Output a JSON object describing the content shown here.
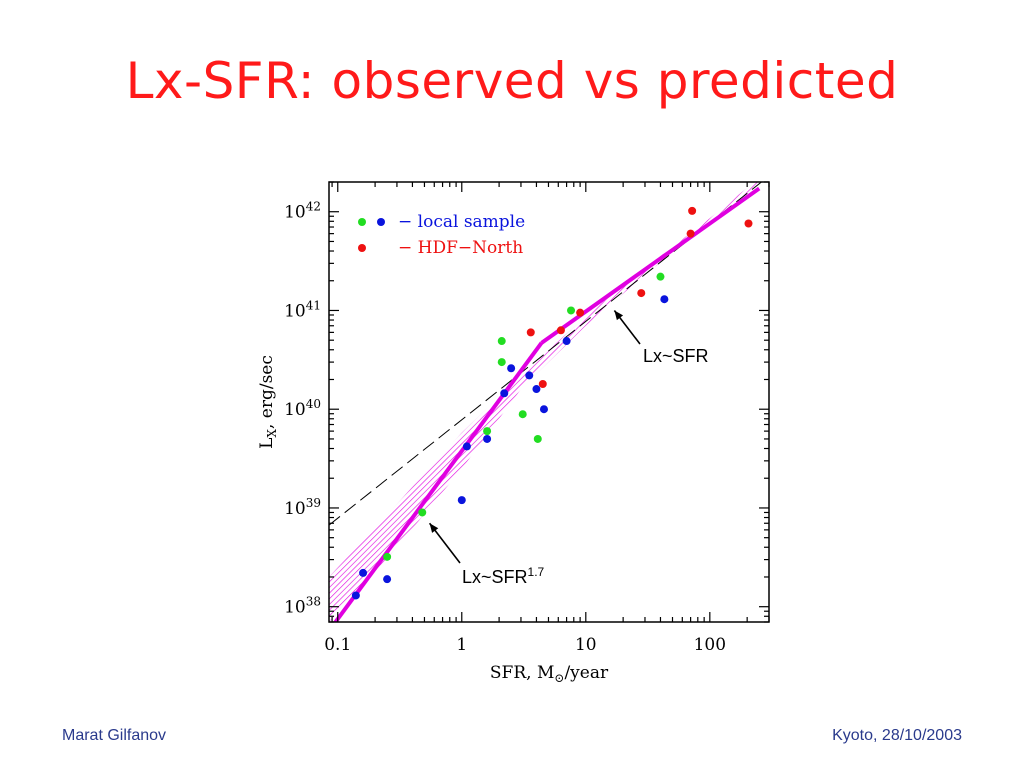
{
  "title": "Lx-SFR: observed vs predicted",
  "footer": {
    "left": "Marat Gilfanov",
    "right": "Kyoto, 28/10/2003"
  },
  "colors": {
    "title": "#ff1a1a",
    "footer": "#2a3a8c",
    "band": "#e000e0",
    "green": "#22dd22",
    "blue": "#0a14dd",
    "red": "#ee1111"
  },
  "chart_data": {
    "type": "scatter",
    "x_scale": "log",
    "y_scale": "log",
    "xlim": [
      0.085,
      300
    ],
    "ylim": [
      7e+37,
      2e+42
    ],
    "grid": false,
    "legend_placement": "top-left",
    "xlabel": {
      "main": "SFR,  M",
      "subscript": "⊙",
      "tail": "/year"
    },
    "ylabel": {
      "main": "L",
      "subscript": "X",
      "tail": ",  erg/sec"
    },
    "x_ticks": [
      {
        "value": 0.1,
        "label": "0.1"
      },
      {
        "value": 1,
        "label": "1"
      },
      {
        "value": 10,
        "label": "10"
      },
      {
        "value": 100,
        "label": "100"
      }
    ],
    "y_ticks": [
      {
        "value": 1e+38,
        "base": "10",
        "exp": "38"
      },
      {
        "value": 1e+39,
        "base": "10",
        "exp": "39"
      },
      {
        "value": 1e+40,
        "base": "10",
        "exp": "40"
      },
      {
        "value": 1e+41,
        "base": "10",
        "exp": "41"
      },
      {
        "value": 1e+42,
        "base": "10",
        "exp": "42"
      }
    ],
    "legend": [
      {
        "colors": [
          "#22dd22",
          "#0a14dd"
        ],
        "label": "−  local sample",
        "text_color": "#0a14dd"
      },
      {
        "colors": [
          "#ee1111"
        ],
        "label": "−  HDF−North",
        "text_color": "#ee1111"
      }
    ],
    "lines": [
      {
        "name": "",
        "style": "dashed",
        "color": "#000000",
        "x": [
          0.085,
          300
        ],
        "y": [
          6.7e+38,
          2.3e+42
        ]
      },
      {
        "name": "",
        "style": "solid",
        "color": "#e000e0",
        "x": [
          0.085,
          4.4
        ],
        "y": [
          5.7e+37,
          4.7e+40
        ]
      },
      {
        "name": "",
        "style": "solid",
        "color": "#e000e0",
        "x": [
          4.4,
          250
        ],
        "y": [
          4.7e+40,
          1.72e+42
        ]
      }
    ],
    "band": {
      "x": [
        0.085,
        0.3,
        1,
        3,
        10,
        30,
        100,
        250
      ],
      "y_low": [
        7e+37,
        4e+38,
        2.5e+39,
        1.6e+40,
        7e+40,
        2.3e+41,
        7.6e+41,
        1.9e+42
      ],
      "y_high": [
        2e+38,
        1.1e+39,
        5.8e+39,
        2.2e+40,
        8.8e+40,
        2.7e+41,
        8.6e+41,
        2.2e+42
      ]
    },
    "series": [
      {
        "color": "#22dd22",
        "x": [
          0.25,
          0.48,
          1.6,
          2.1,
          2.1,
          3.1,
          4.1,
          7.6,
          40
        ],
        "y": [
          3.2e+38,
          9e+38,
          6e+39,
          3e+40,
          4.9e+40,
          8.9e+39,
          5e+39,
          1e+41,
          2.2e+41
        ]
      },
      {
        "color": "#0a14dd",
        "x": [
          0.14,
          0.16,
          0.25,
          1.0,
          1.1,
          1.6,
          2.2,
          2.5,
          3.5,
          4.0,
          4.6,
          7.0,
          43
        ],
        "y": [
          1.3e+38,
          2.2e+38,
          1.9e+38,
          1.2e+39,
          4.2e+39,
          5e+39,
          1.45e+40,
          2.6e+40,
          2.2e+40,
          1.6e+40,
          1e+40,
          4.9e+40,
          1.3e+41
        ]
      },
      {
        "color": "#ee1111",
        "x": [
          3.6,
          4.5,
          6.3,
          9,
          28,
          70,
          72,
          205
        ],
        "y": [
          6e+40,
          1.8e+40,
          6.3e+40,
          9.5e+40,
          1.5e+41,
          6e+41,
          1.02e+42,
          7.6e+41
        ]
      }
    ],
    "annotations": [
      {
        "text": "Lx~SFR",
        "sup": "",
        "arrow_to": [
          17,
          1e+41
        ]
      },
      {
        "text": "Lx~SFR",
        "sup": "1.7",
        "arrow_to": [
          0.55,
          7e+38
        ]
      }
    ]
  }
}
